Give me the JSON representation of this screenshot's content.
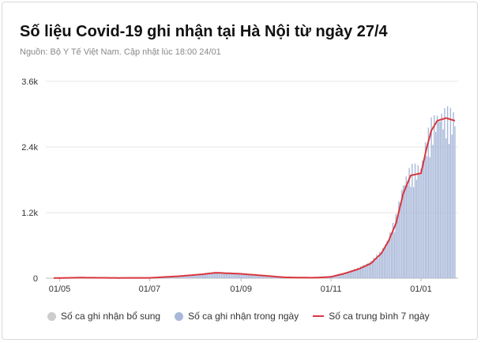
{
  "header": {
    "title": "Số liệu Covid-19 ghi nhận tại Hà Nội từ ngày 27/4",
    "subtitle": "Nguồn: Bộ Y Tế Việt Nam. Cập nhật lúc 18:00 24/01"
  },
  "colors": {
    "supplement": "#cccccc",
    "daily": "#a9b8d9",
    "average": "#d9363e",
    "grid": "#e6e6e6",
    "axis_text": "#333333"
  },
  "chart_data": {
    "type": "bar",
    "x_start": "2021-04-27",
    "x_end": "2022-01-24",
    "x_ticks": [
      {
        "date": "2021-05-01",
        "label": "01/05"
      },
      {
        "date": "2021-07-01",
        "label": "01/07"
      },
      {
        "date": "2021-09-01",
        "label": "01/09"
      },
      {
        "date": "2021-11-01",
        "label": "01/11"
      },
      {
        "date": "2022-01-01",
        "label": "01/01"
      }
    ],
    "y_ticks": [
      {
        "value": 0,
        "label": "0"
      },
      {
        "value": 1200,
        "label": "1.2k"
      },
      {
        "value": 2400,
        "label": "2.4k"
      },
      {
        "value": 3600,
        "label": "3.6k"
      }
    ],
    "ylim": [
      0,
      3600
    ],
    "grid": true,
    "legend_position": "bottom",
    "series": [
      {
        "name": "Số ca ghi nhận bổ sung",
        "kind": "bar",
        "color": "#cccccc"
      },
      {
        "name": "Số ca ghi nhận trong ngày",
        "kind": "bar",
        "color": "#a9b8d9",
        "keypoints": [
          [
            "2021-04-27",
            2
          ],
          [
            "2021-05-15",
            12
          ],
          [
            "2021-06-10",
            6
          ],
          [
            "2021-07-01",
            8
          ],
          [
            "2021-07-20",
            40
          ],
          [
            "2021-08-05",
            75
          ],
          [
            "2021-08-15",
            110
          ],
          [
            "2021-09-01",
            85
          ],
          [
            "2021-09-15",
            55
          ],
          [
            "2021-10-01",
            18
          ],
          [
            "2021-10-20",
            10
          ],
          [
            "2021-11-01",
            30
          ],
          [
            "2021-11-10",
            95
          ],
          [
            "2021-11-20",
            190
          ],
          [
            "2021-11-28",
            300
          ],
          [
            "2021-12-05",
            480
          ],
          [
            "2021-12-10",
            720
          ],
          [
            "2021-12-15",
            1100
          ],
          [
            "2021-12-20",
            1700
          ],
          [
            "2021-12-25",
            1950
          ],
          [
            "2022-01-01",
            2000
          ],
          [
            "2022-01-05",
            2500
          ],
          [
            "2022-01-08",
            2750
          ],
          [
            "2022-01-12",
            2900
          ],
          [
            "2022-01-18",
            2950
          ],
          [
            "2022-01-24",
            2900
          ]
        ]
      },
      {
        "name": "Số ca trung bình 7 ngày",
        "kind": "line",
        "color": "#d9363e",
        "keypoints": [
          [
            "2021-04-27",
            2
          ],
          [
            "2021-05-15",
            10
          ],
          [
            "2021-06-10",
            5
          ],
          [
            "2021-07-01",
            6
          ],
          [
            "2021-07-20",
            35
          ],
          [
            "2021-08-05",
            70
          ],
          [
            "2021-08-15",
            100
          ],
          [
            "2021-09-01",
            80
          ],
          [
            "2021-09-15",
            50
          ],
          [
            "2021-10-01",
            15
          ],
          [
            "2021-10-20",
            8
          ],
          [
            "2021-11-01",
            25
          ],
          [
            "2021-11-10",
            85
          ],
          [
            "2021-11-20",
            170
          ],
          [
            "2021-11-28",
            270
          ],
          [
            "2021-12-05",
            450
          ],
          [
            "2021-12-10",
            680
          ],
          [
            "2021-12-15",
            1000
          ],
          [
            "2021-12-20",
            1550
          ],
          [
            "2021-12-25",
            1880
          ],
          [
            "2022-01-01",
            1920
          ],
          [
            "2022-01-05",
            2400
          ],
          [
            "2022-01-08",
            2700
          ],
          [
            "2022-01-12",
            2880
          ],
          [
            "2022-01-18",
            2930
          ],
          [
            "2022-01-24",
            2880
          ]
        ]
      }
    ]
  }
}
